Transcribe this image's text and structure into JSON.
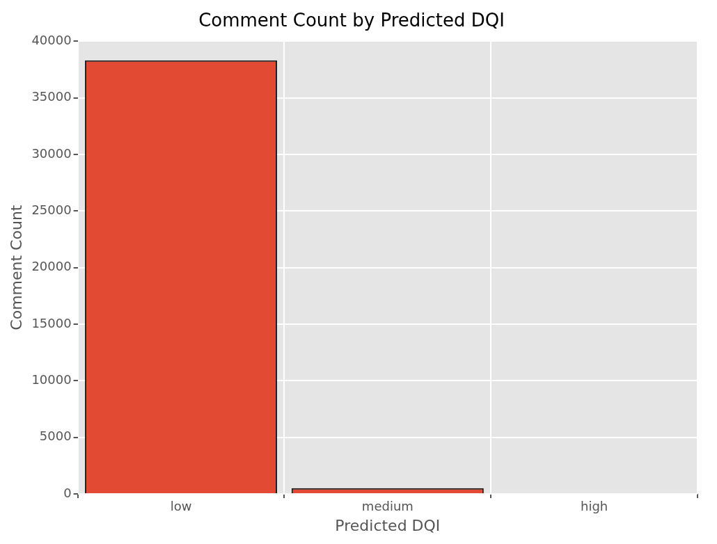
{
  "chart_data": {
    "type": "bar",
    "title": "Comment Count by Predicted DQI",
    "xlabel": "Predicted DQI",
    "ylabel": "Comment Count",
    "categories": [
      "low",
      "medium",
      "high"
    ],
    "values": [
      38300,
      500,
      null
    ],
    "color": "#e24a33",
    "ylim": [
      0,
      40000
    ],
    "yticks": [
      0,
      5000,
      10000,
      15000,
      20000,
      25000,
      30000,
      35000,
      40000
    ],
    "grid": true,
    "legend": false
  }
}
